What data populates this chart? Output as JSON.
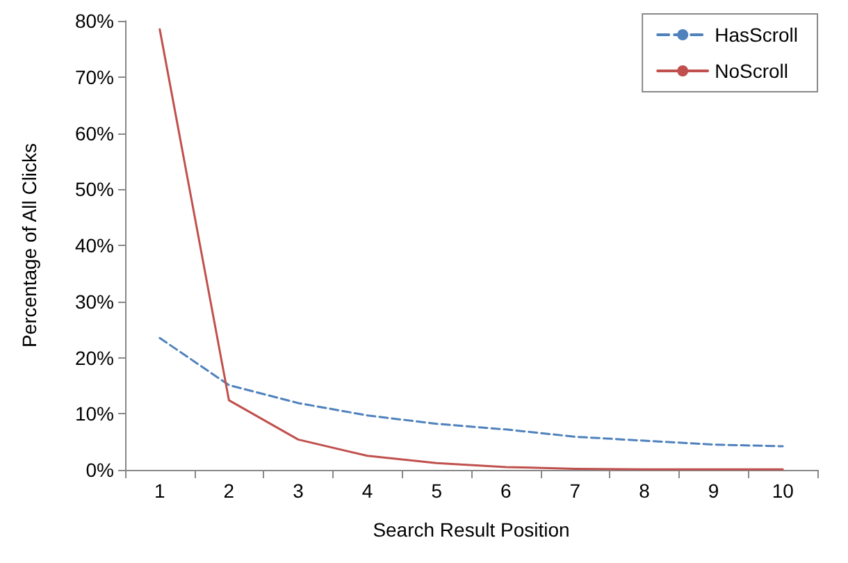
{
  "chart_data": {
    "type": "line",
    "xlabel": "Search Result Position",
    "ylabel": "Percentage of All Clicks",
    "categories": [
      "1",
      "2",
      "3",
      "4",
      "5",
      "6",
      "7",
      "8",
      "9",
      "10"
    ],
    "series": [
      {
        "name": "HasScroll",
        "color": "#4f81bd",
        "line_style": "dashed",
        "values": [
          23.5,
          15.1,
          11.9,
          9.7,
          8.2,
          7.2,
          5.9,
          5.2,
          4.5,
          4.2
        ]
      },
      {
        "name": "NoScroll",
        "color": "#c0504d",
        "line_style": "solid",
        "values": [
          78.5,
          12.4,
          5.4,
          2.5,
          1.2,
          0.5,
          0.2,
          0.1,
          0.1,
          0.1
        ]
      }
    ],
    "ylim": [
      0,
      80
    ],
    "yticks": [
      {
        "value": 0,
        "label": "0%"
      },
      {
        "value": 10,
        "label": "10%"
      },
      {
        "value": 20,
        "label": "20%"
      },
      {
        "value": 30,
        "label": "30%"
      },
      {
        "value": 40,
        "label": "40%"
      },
      {
        "value": 50,
        "label": "50%"
      },
      {
        "value": 60,
        "label": "60%"
      },
      {
        "value": 70,
        "label": "70%"
      },
      {
        "value": 80,
        "label": "80%"
      }
    ],
    "grid": false,
    "legend": "top right",
    "marker": "none"
  }
}
